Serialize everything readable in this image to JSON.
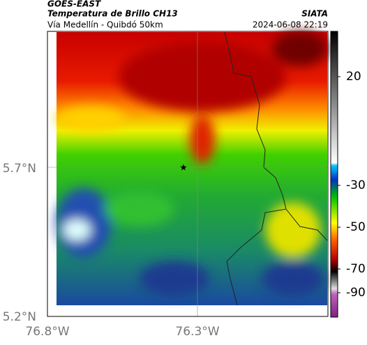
{
  "header": {
    "product": "GOES-EAST",
    "title": "Temperatura de Brillo CH13",
    "source": "SIATA",
    "subtitle": "Vía Medellín - Quibdó 50km",
    "datetime": "2024-06-08 22:19"
  },
  "map": {
    "lat_labels": [
      "5.7°N",
      "5.2°N"
    ],
    "lon_labels": [
      "76.8°W",
      "76.3°W"
    ]
  },
  "colorbar": {
    "tick_labels": [
      "20",
      "-30",
      "-50",
      "-70",
      "-90"
    ]
  }
}
